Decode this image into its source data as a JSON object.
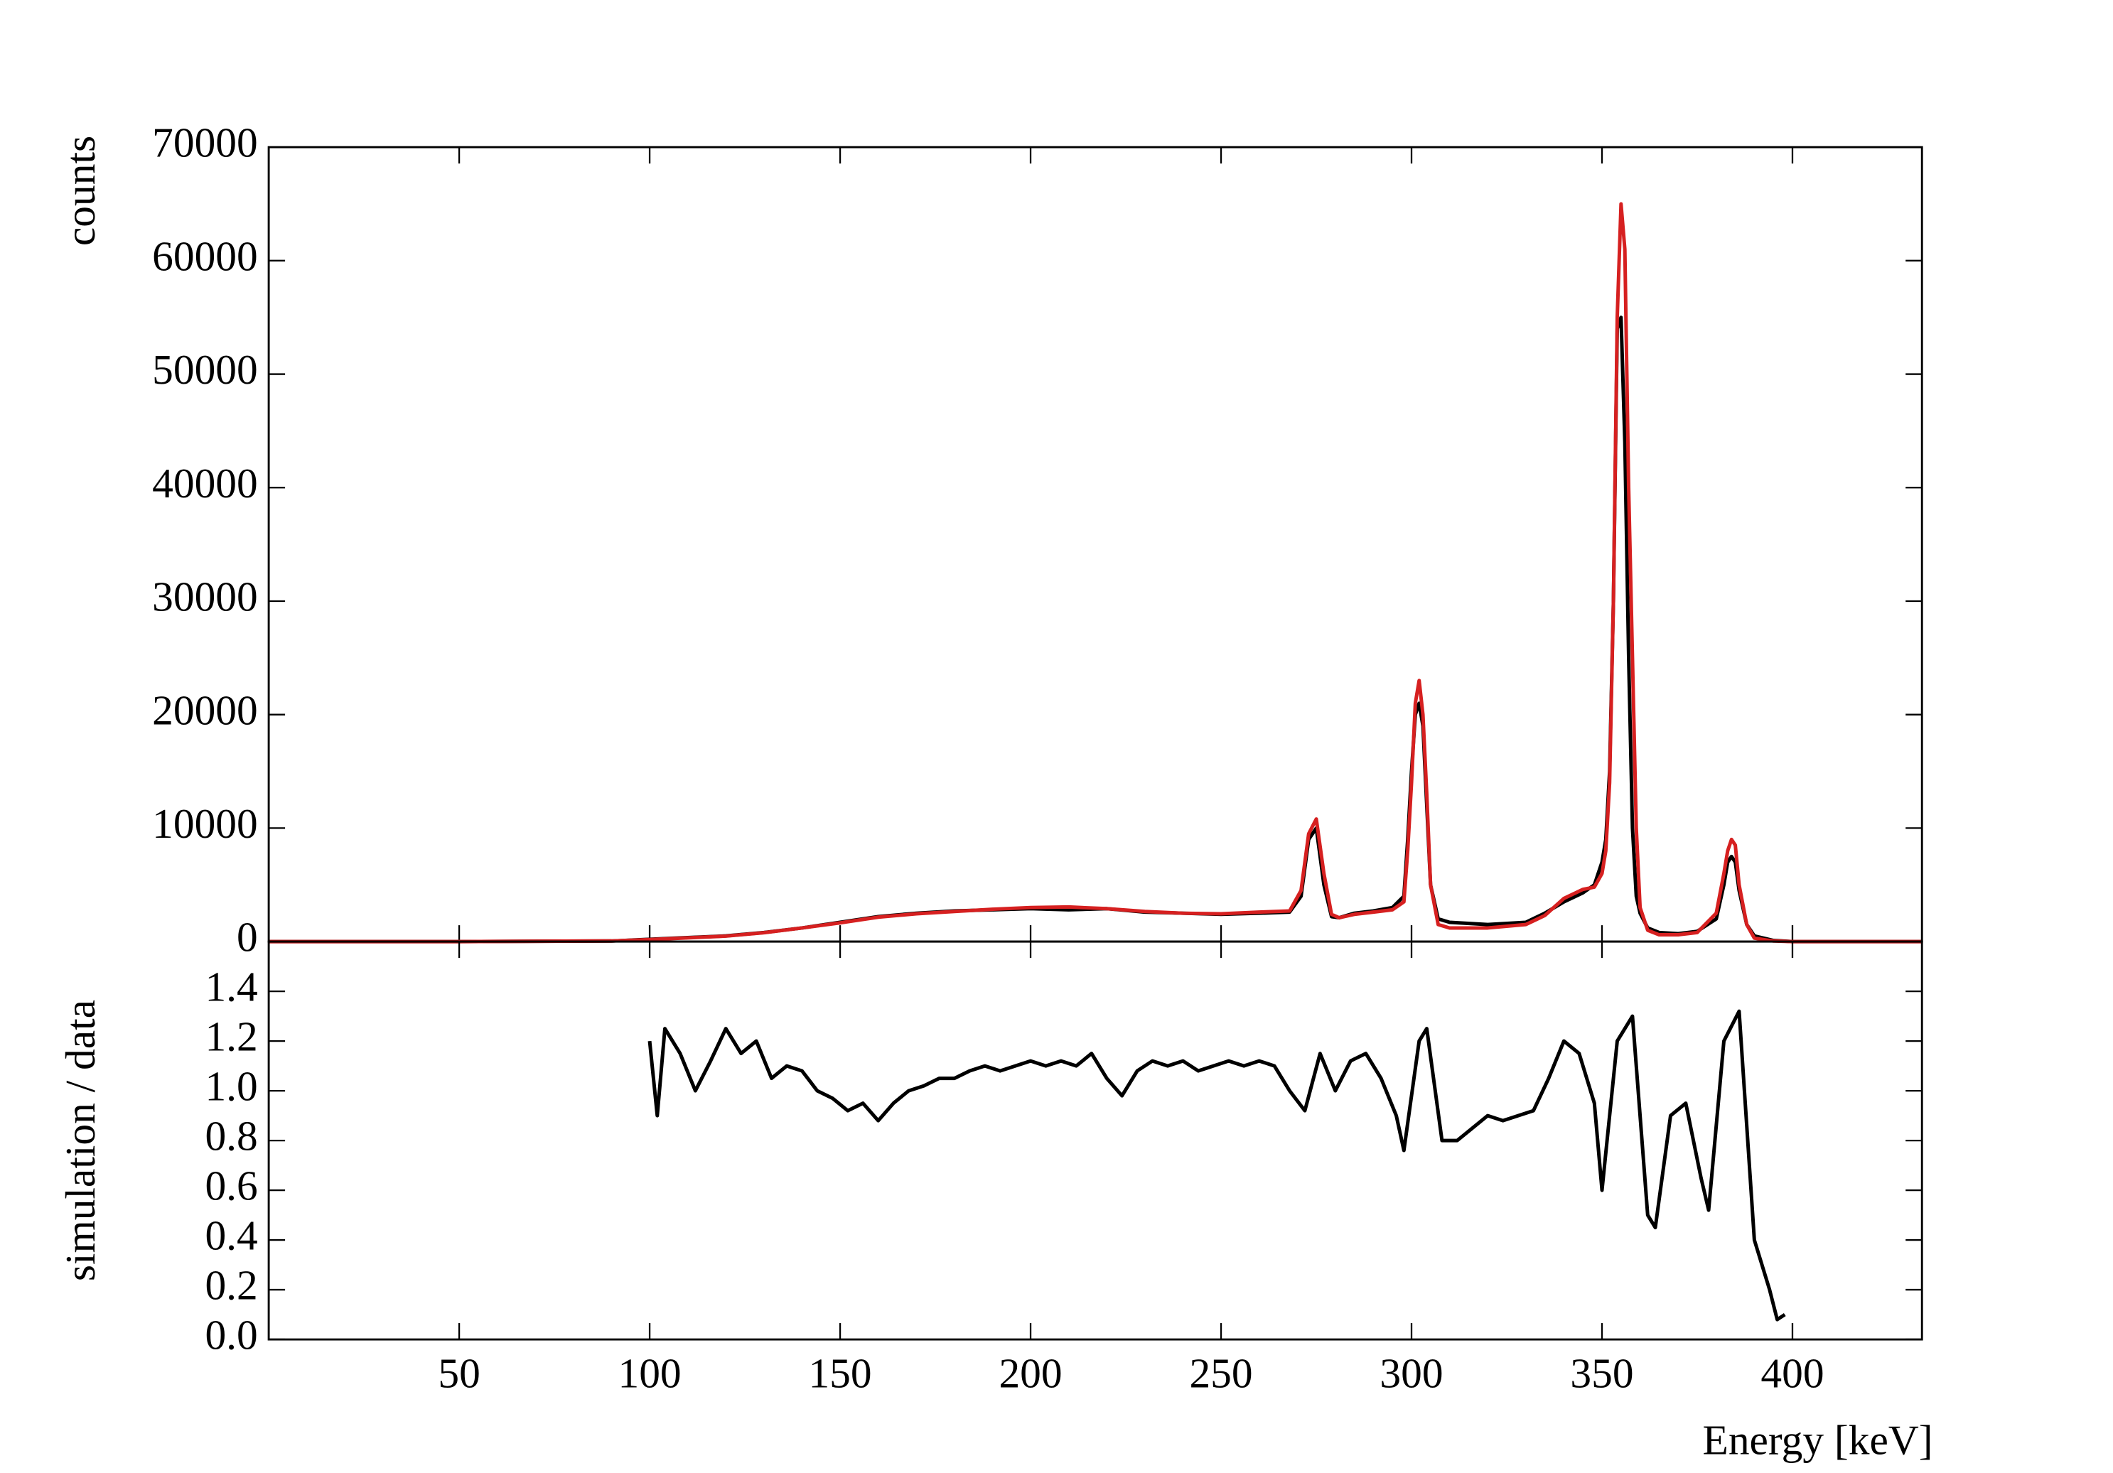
{
  "chart_data": [
    {
      "type": "line",
      "ylabel": "counts",
      "x": [
        0,
        50,
        90,
        100,
        110,
        120,
        130,
        140,
        150,
        160,
        170,
        180,
        190,
        200,
        210,
        220,
        230,
        240,
        250,
        260,
        268,
        271,
        273,
        275,
        277,
        279,
        281,
        285,
        290,
        295,
        298,
        299,
        300,
        301,
        302,
        303,
        304,
        305,
        307,
        310,
        320,
        330,
        335,
        340,
        345,
        348,
        350,
        351,
        352,
        353,
        354,
        355,
        356,
        357,
        358,
        359,
        360,
        362,
        365,
        370,
        375,
        380,
        382,
        383,
        384,
        385,
        386,
        388,
        390,
        395,
        400,
        434
      ],
      "series": [
        {
          "color": "#000000",
          "values": [
            0,
            0,
            50,
            200,
            350,
            500,
            800,
            1200,
            1700,
            2200,
            2500,
            2700,
            2800,
            2900,
            2800,
            2900,
            2600,
            2500,
            2400,
            2500,
            2600,
            4000,
            9000,
            10000,
            5000,
            2200,
            2100,
            2500,
            2700,
            3000,
            4000,
            9000,
            15000,
            20000,
            21000,
            19000,
            12000,
            5000,
            2000,
            1700,
            1500,
            1700,
            2500,
            3500,
            4300,
            5000,
            7000,
            9000,
            15000,
            30000,
            54000,
            55000,
            44000,
            25000,
            10000,
            4000,
            2500,
            1200,
            800,
            700,
            900,
            2000,
            5000,
            7000,
            7500,
            7000,
            4500,
            1500,
            500,
            100,
            0,
            0
          ]
        },
        {
          "color": "#d62020",
          "values": [
            0,
            0,
            50,
            180,
            330,
            480,
            780,
            1200,
            1650,
            2150,
            2450,
            2650,
            2850,
            3000,
            3050,
            2900,
            2650,
            2500,
            2450,
            2600,
            2700,
            4500,
            9500,
            10800,
            6000,
            2400,
            2100,
            2400,
            2600,
            2800,
            3500,
            8000,
            14000,
            21000,
            23000,
            20000,
            13000,
            5000,
            1500,
            1200,
            1200,
            1500,
            2300,
            3800,
            4600,
            4800,
            6000,
            8000,
            14000,
            30000,
            55000,
            65000,
            61000,
            40000,
            25000,
            10000,
            3000,
            1000,
            600,
            600,
            800,
            2500,
            6000,
            8000,
            9000,
            8500,
            5000,
            1500,
            300,
            50,
            0,
            0
          ]
        }
      ],
      "xlim": [
        0,
        434
      ],
      "xticks": [
        50,
        100,
        150,
        200,
        250,
        300,
        350,
        400
      ],
      "ylim": [
        0,
        70000
      ],
      "yticks": [
        0,
        10000,
        20000,
        30000,
        40000,
        50000,
        60000,
        70000
      ]
    },
    {
      "type": "line",
      "ylabel": "simulation / data",
      "xlabel": "Energy [keV]",
      "x": [
        100,
        102,
        104,
        108,
        112,
        116,
        120,
        124,
        128,
        132,
        136,
        140,
        144,
        148,
        152,
        156,
        160,
        164,
        168,
        172,
        176,
        180,
        184,
        188,
        192,
        196,
        200,
        204,
        208,
        212,
        216,
        220,
        224,
        228,
        232,
        236,
        240,
        244,
        248,
        252,
        256,
        260,
        264,
        268,
        272,
        276,
        280,
        284,
        288,
        292,
        296,
        298,
        302,
        304,
        308,
        312,
        316,
        320,
        324,
        328,
        332,
        336,
        340,
        344,
        348,
        350,
        354,
        358,
        362,
        364,
        368,
        372,
        376,
        378,
        382,
        386,
        390,
        394,
        396,
        398
      ],
      "series": [
        {
          "color": "#000000",
          "values": [
            1.2,
            0.9,
            1.25,
            1.15,
            1.0,
            1.12,
            1.25,
            1.15,
            1.2,
            1.05,
            1.1,
            1.08,
            1.0,
            0.97,
            0.92,
            0.95,
            0.88,
            0.95,
            1.0,
            1.02,
            1.05,
            1.05,
            1.08,
            1.1,
            1.08,
            1.1,
            1.12,
            1.1,
            1.12,
            1.1,
            1.15,
            1.05,
            0.98,
            1.08,
            1.12,
            1.1,
            1.12,
            1.08,
            1.1,
            1.12,
            1.1,
            1.12,
            1.1,
            1.0,
            0.92,
            1.15,
            1.0,
            1.12,
            1.15,
            1.05,
            0.9,
            0.76,
            1.2,
            1.25,
            0.8,
            0.8,
            0.85,
            0.9,
            0.88,
            0.9,
            0.92,
            1.05,
            1.2,
            1.15,
            0.95,
            0.6,
            1.2,
            1.3,
            0.5,
            0.45,
            0.9,
            0.95,
            0.65,
            0.52,
            1.2,
            1.32,
            0.4,
            0.2,
            0.08,
            0.1
          ]
        }
      ],
      "xlim": [
        0,
        434
      ],
      "xticks": [
        50,
        100,
        150,
        200,
        250,
        300,
        350,
        400
      ],
      "ylim": [
        0,
        1.6
      ],
      "yticks": [
        {
          "value": 0,
          "label": "0.0"
        },
        0.2,
        0.4,
        0.6,
        0.8,
        {
          "value": 1,
          "label": "1.0"
        },
        1.2,
        1.4
      ]
    }
  ]
}
